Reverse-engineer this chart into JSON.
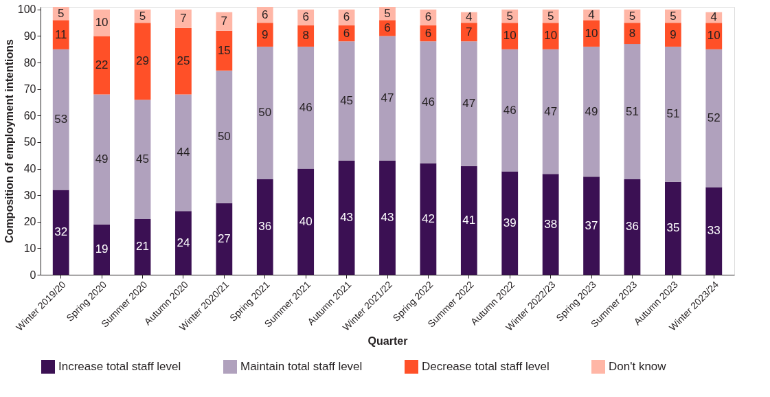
{
  "chart_data": {
    "type": "bar",
    "stacked": true,
    "xlabel": "Quarter",
    "ylabel": "Composition of employment intentions",
    "categories": [
      "Winter 2019/20",
      "Spring 2020",
      "Summer 2020",
      "Autumn 2020",
      "Winter 2020/21",
      "Spring 2021",
      "Summer 2021",
      "Autumn 2021",
      "Winter 2021/22",
      "Spring 2022",
      "Summer 2022",
      "Autumn 2022",
      "Winter 2022/23",
      "Spring 2023",
      "Summer 2023",
      "Autumn 2023",
      "Winter 2023/24"
    ],
    "series": [
      {
        "name": "Increase total staff level",
        "color": "#3b1053",
        "values": [
          32,
          19,
          21,
          24,
          27,
          36,
          40,
          43,
          43,
          42,
          41,
          39,
          38,
          37,
          36,
          35,
          33
        ]
      },
      {
        "name": "Maintain total staff level",
        "color": "#b0a1bd",
        "values": [
          53,
          49,
          45,
          44,
          50,
          50,
          46,
          45,
          47,
          46,
          47,
          46,
          47,
          49,
          51,
          51,
          52
        ]
      },
      {
        "name": "Decrease total staff level",
        "color": "#ff5028",
        "values": [
          11,
          22,
          29,
          25,
          15,
          9,
          8,
          6,
          6,
          6,
          7,
          10,
          10,
          10,
          8,
          9,
          10
        ]
      },
      {
        "name": "Don't know",
        "color": "#ffb6a6",
        "values": [
          5,
          10,
          5,
          7,
          7,
          6,
          6,
          6,
          5,
          6,
          4,
          5,
          5,
          4,
          5,
          5,
          4
        ]
      }
    ],
    "ylim": [
      0,
      101
    ],
    "yticks": [
      0,
      10,
      20,
      30,
      40,
      50,
      60,
      70,
      80,
      90,
      100
    ],
    "data_labels": true,
    "grid": false,
    "legend": "bottom"
  }
}
